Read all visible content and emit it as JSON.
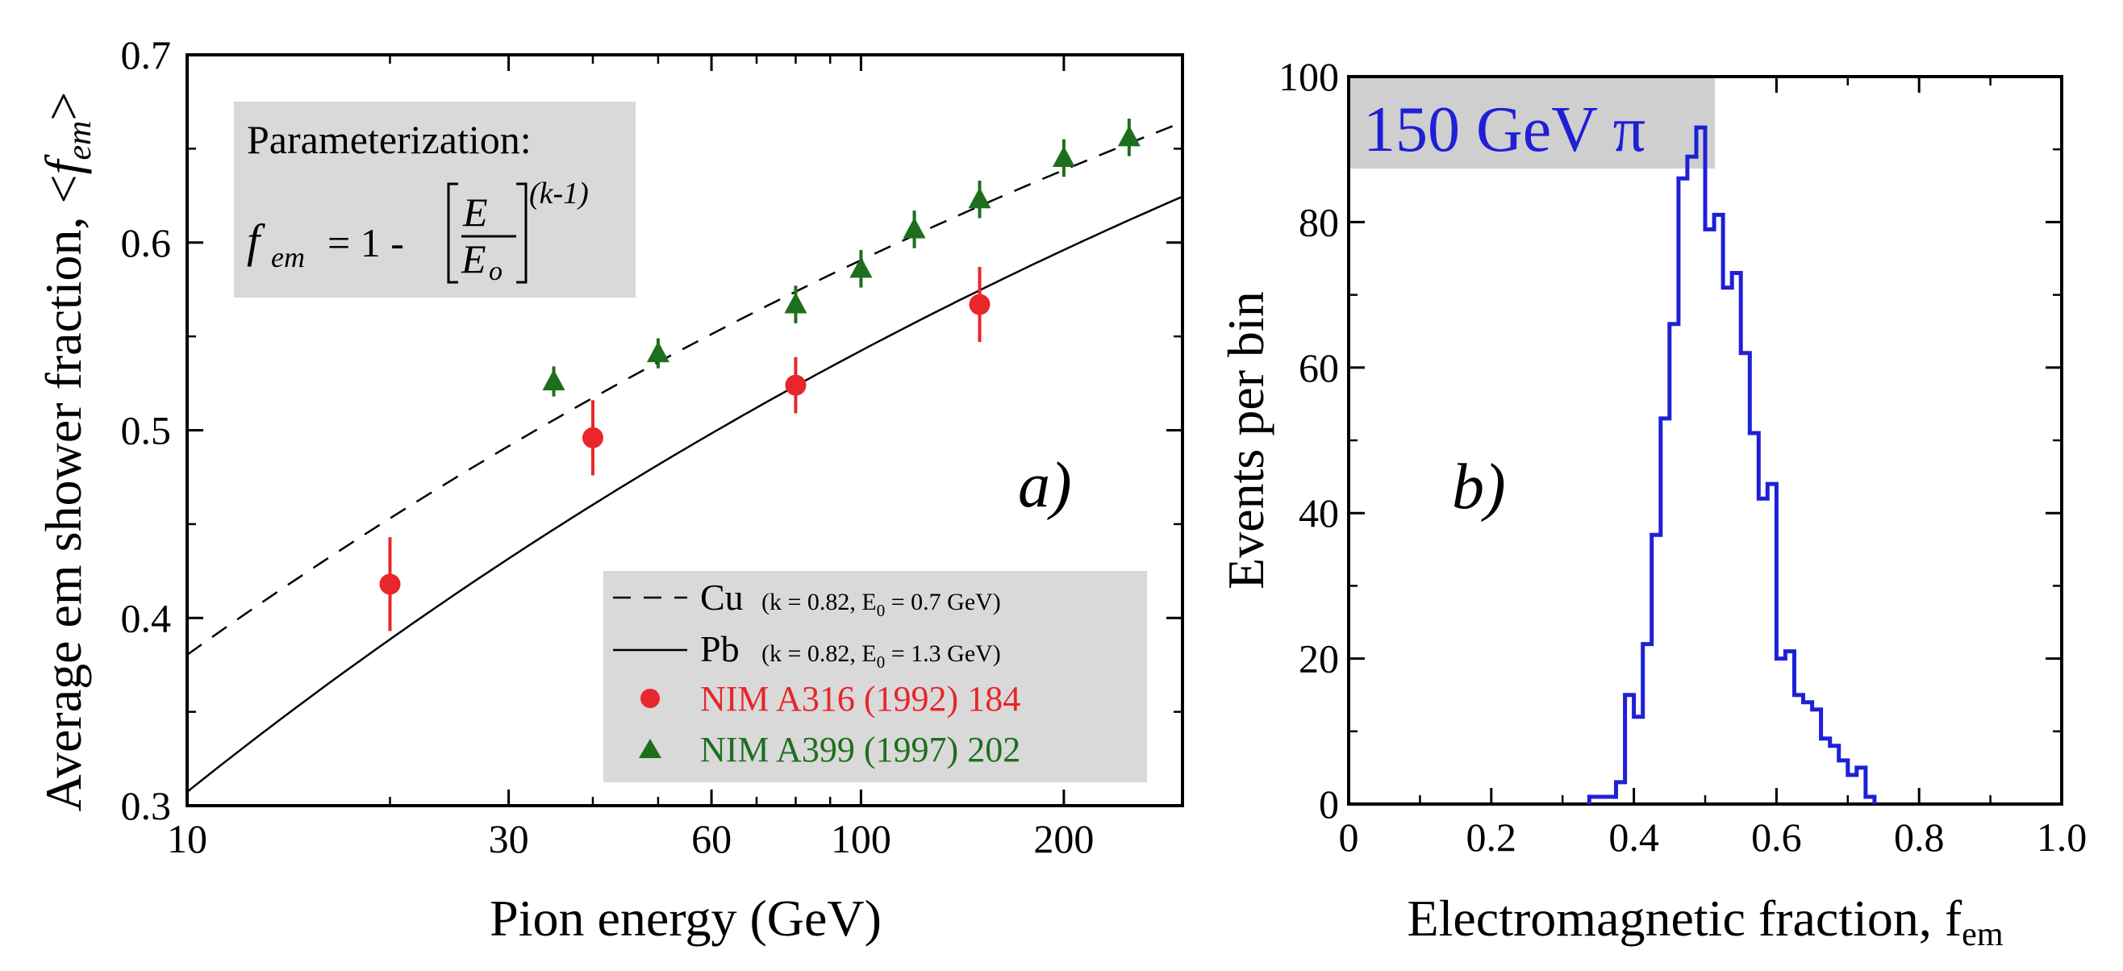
{
  "panel_a": {
    "ylabel_prefix": "Average em shower fraction, <",
    "ylabel_f": "f",
    "ylabel_sub": "em",
    "ylabel_suffix": ">",
    "xlabel": "Pion energy (GeV)",
    "panel_label": "a)",
    "param_title": "Parameterization:",
    "formula": {
      "f": "f",
      "f_sub": "em",
      "eq": "= 1 -",
      "num": "E",
      "den": "E",
      "den_sub": "o",
      "exponent": "(k-1)"
    },
    "legend": [
      {
        "symbol": "dashed-line",
        "label": "Cu",
        "params_prefix": "(k = 0.82, E",
        "params_sub": "0",
        "params_suffix": " = 0.7 GeV)",
        "color": "#000000"
      },
      {
        "symbol": "solid-line",
        "label": "Pb",
        "params_prefix": "(k = 0.82, E",
        "params_sub": "0",
        "params_suffix": " = 1.3 GeV)",
        "color": "#000000"
      },
      {
        "symbol": "circle",
        "label": "NIM A316 (1992) 184",
        "color": "#e8262b"
      },
      {
        "symbol": "triangle",
        "label": "NIM A399 (1997) 202",
        "color": "#1d6f1d"
      }
    ]
  },
  "panel_b": {
    "title": "150 GeV π",
    "title_color": "#1f20d6",
    "ylabel": "Events per bin",
    "xlabel_prefix": "Electromagnetic fraction, f",
    "xlabel_sub": "em",
    "panel_label": "b)"
  },
  "chart_data": [
    {
      "type": "scatter",
      "x_scale": "log",
      "xlim": [
        10,
        300
      ],
      "ylim": [
        0.3,
        0.7
      ],
      "x_ticks": [
        10,
        30,
        60,
        100,
        200
      ],
      "y_ticks": [
        0.3,
        0.4,
        0.5,
        0.6,
        0.7
      ],
      "x_tick_labels": [
        "10",
        "30",
        "60",
        "100",
        "200"
      ],
      "y_tick_labels": [
        "0.3",
        "0.4",
        "0.5",
        "0.6",
        "0.7"
      ],
      "lines": [
        {
          "name": "Cu",
          "style": "dashed",
          "k": 0.82,
          "E0": 0.7
        },
        {
          "name": "Pb",
          "style": "solid",
          "k": 0.82,
          "E0": 1.3
        }
      ],
      "series": [
        {
          "name": "NIM A316 (1992) 184",
          "marker": "circle",
          "color": "#e8262b",
          "points": [
            {
              "x": 20,
              "y": 0.418,
              "err": 0.025
            },
            {
              "x": 40,
              "y": 0.496,
              "err": 0.02
            },
            {
              "x": 80,
              "y": 0.524,
              "err": 0.015
            },
            {
              "x": 150,
              "y": 0.567,
              "err": 0.02
            }
          ]
        },
        {
          "name": "NIM A399 (1997) 202",
          "marker": "triangle",
          "color": "#1d6f1d",
          "points": [
            {
              "x": 35,
              "y": 0.526,
              "err": 0.008
            },
            {
              "x": 50,
              "y": 0.541,
              "err": 0.008
            },
            {
              "x": 80,
              "y": 0.567,
              "err": 0.01
            },
            {
              "x": 100,
              "y": 0.586,
              "err": 0.01
            },
            {
              "x": 120,
              "y": 0.607,
              "err": 0.01
            },
            {
              "x": 150,
              "y": 0.623,
              "err": 0.01
            },
            {
              "x": 200,
              "y": 0.645,
              "err": 0.01
            },
            {
              "x": 250,
              "y": 0.656,
              "err": 0.01
            }
          ]
        }
      ]
    },
    {
      "type": "bar",
      "style": "step-histogram",
      "color": "#1f20d6",
      "xlim": [
        0,
        1.0
      ],
      "ylim": [
        0,
        100
      ],
      "x_ticks": [
        0,
        0.2,
        0.4,
        0.6,
        0.8,
        1.0
      ],
      "y_ticks": [
        0,
        20,
        40,
        60,
        80,
        100
      ],
      "x_tick_labels": [
        "0",
        "0.2",
        "0.4",
        "0.6",
        "0.8",
        "1.0"
      ],
      "y_tick_labels": [
        "0",
        "20",
        "40",
        "60",
        "80",
        "100"
      ],
      "bin_width": 0.0125,
      "bin_start": 0.3375,
      "values": [
        1,
        1,
        1,
        3,
        15,
        12,
        22,
        37,
        53,
        66,
        86,
        89,
        93,
        79,
        81,
        71,
        73,
        62,
        51,
        42,
        44,
        20,
        21,
        15,
        14,
        13,
        9,
        8,
        6,
        4,
        5,
        1
      ]
    }
  ]
}
